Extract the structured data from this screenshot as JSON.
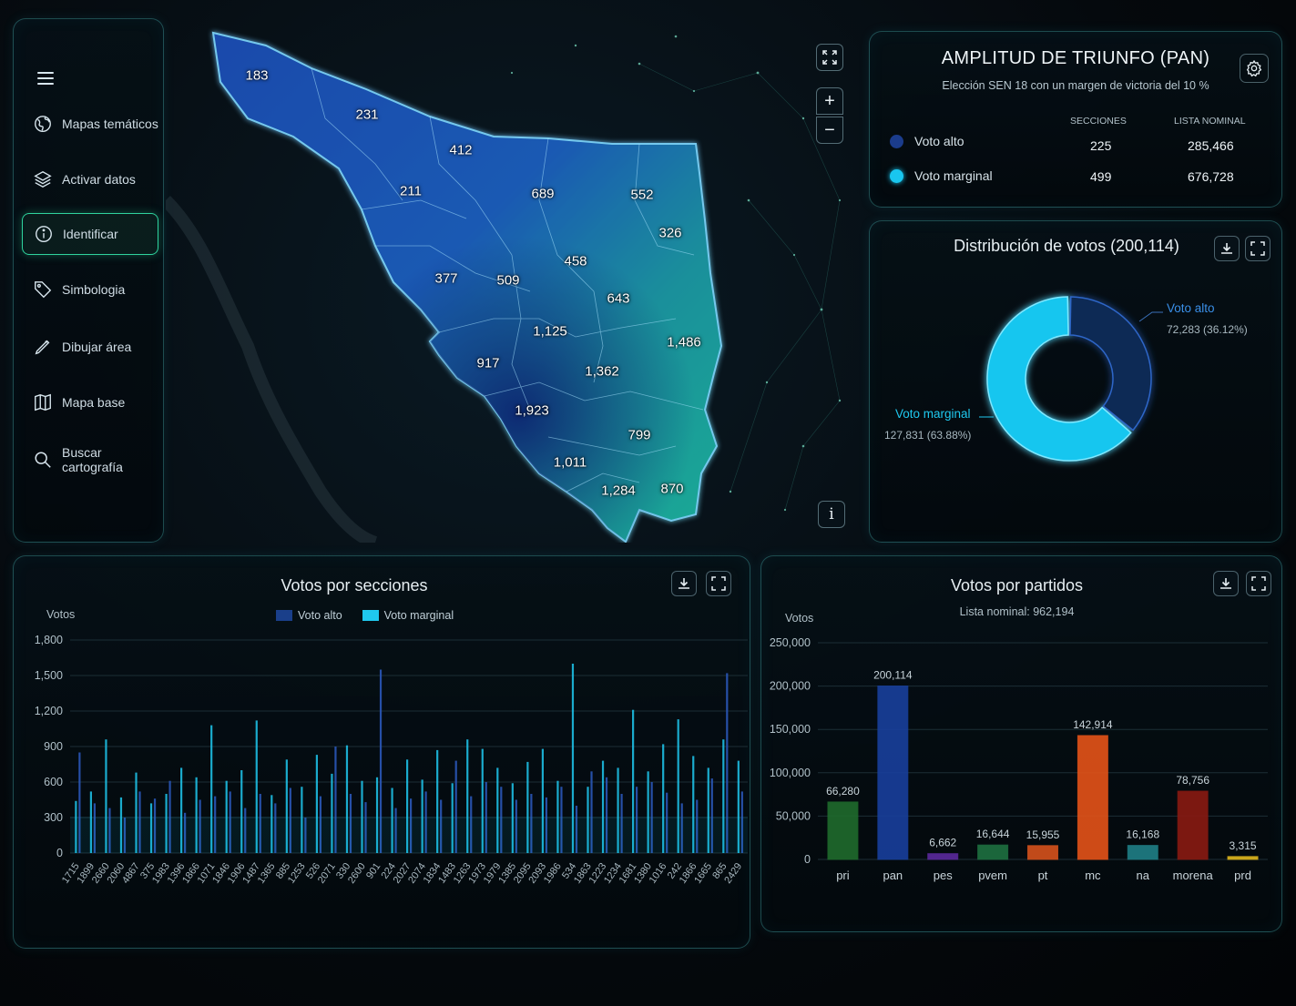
{
  "sidebar": {
    "items": [
      {
        "label": "Mapas temáticos",
        "icon": "globe-icon"
      },
      {
        "label": "Activar datos",
        "icon": "layers-icon"
      },
      {
        "label": "Identificar",
        "icon": "info-icon",
        "active": true
      },
      {
        "label": "Simbologia",
        "icon": "tag-icon"
      },
      {
        "label": "Dibujar área",
        "icon": "pen-icon"
      },
      {
        "label": "Mapa base",
        "icon": "map-icon"
      },
      {
        "label": "Buscar cartografía",
        "icon": "search-icon"
      }
    ]
  },
  "map": {
    "labels": [
      "183",
      "231",
      "412",
      "211",
      "689",
      "552",
      "326",
      "458",
      "377",
      "509",
      "643",
      "1,486",
      "1,125",
      "917",
      "1,362",
      "1,923",
      "799",
      "1,011",
      "1,284",
      "870"
    ],
    "zoom_in": "+",
    "zoom_out": "−",
    "info": "i"
  },
  "amplitud": {
    "title": "AMPLITUD DE TRIUNFO (PAN)",
    "subtitle": "Elección SEN 18 con un margen de victoria del 10 %",
    "col_secciones": "SECCIONES",
    "col_lista": "LISTA NOMINAL",
    "rows": [
      {
        "label": "Voto alto",
        "secciones": "225",
        "lista": "285,466",
        "color": "#1b3c8c"
      },
      {
        "label": "Voto marginal",
        "secciones": "499",
        "lista": "676,728",
        "color": "#19c6ef"
      }
    ]
  },
  "donut": {
    "title": "Distribución de votos (200,114)",
    "alto_label": "Voto alto",
    "alto_value": "72,283  (36.12%)",
    "marginal_label": "Voto marginal",
    "marginal_value": "127,831  (63.88%)",
    "chart_data": {
      "type": "pie",
      "slices": [
        {
          "name": "Voto alto",
          "value": 72283,
          "color": "#0f2a55"
        },
        {
          "name": "Voto marginal",
          "value": 127831,
          "color": "#19c6ef"
        }
      ]
    }
  },
  "secciones": {
    "title": "Votos por secciones",
    "ylabel": "Votos",
    "legend": [
      {
        "name": "Voto alto",
        "color": "#1a3f8a"
      },
      {
        "name": "Voto marginal",
        "color": "#1fc8ee"
      }
    ]
  },
  "partidos": {
    "title": "Votos por partidos",
    "subtitle": "Lista nominal: 962,194",
    "ylabel": "Votos"
  },
  "chart_data": [
    {
      "type": "bar",
      "title": "Votos por secciones",
      "ylabel": "Votos",
      "ylim": [
        0,
        1800
      ],
      "yticks": [
        "0",
        "300",
        "600",
        "900",
        "1,200",
        "1,500",
        "1,800"
      ],
      "categories": [
        "1715",
        "1899",
        "2660",
        "2060",
        "4867",
        "375",
        "1983",
        "1396",
        "1866",
        "1071",
        "1846",
        "1906",
        "1487",
        "1365",
        "885",
        "1253",
        "526",
        "2071",
        "330",
        "2600",
        "901",
        "224",
        "2027",
        "2074",
        "1834",
        "1483",
        "1263",
        "1973",
        "1979",
        "1385",
        "2095",
        "2093",
        "1986",
        "534",
        "1863",
        "1223",
        "1234",
        "1681",
        "1380",
        "1016",
        "242",
        "1866",
        "1665",
        "865",
        "2429"
      ],
      "series": [
        {
          "name": "Voto alto",
          "values": [
            850,
            420,
            380,
            300,
            520,
            460,
            610,
            340,
            450,
            480,
            520,
            380,
            500,
            420,
            550,
            300,
            480,
            900,
            500,
            430,
            1550,
            380,
            460,
            520,
            450,
            780,
            480,
            600,
            560,
            450,
            500,
            470,
            560,
            400,
            690,
            640,
            500,
            560,
            600,
            510,
            420,
            450,
            630,
            1520,
            520
          ]
        },
        {
          "name": "Voto marginal",
          "values": [
            440,
            520,
            960,
            470,
            680,
            420,
            500,
            720,
            640,
            1080,
            610,
            700,
            1120,
            490,
            790,
            560,
            830,
            670,
            910,
            610,
            640,
            550,
            790,
            620,
            870,
            590,
            960,
            880,
            720,
            590,
            770,
            880,
            610,
            1600,
            560,
            780,
            720,
            1210,
            690,
            920,
            1130,
            820,
            720,
            960,
            780
          ]
        }
      ]
    },
    {
      "type": "bar",
      "title": "Votos por partidos",
      "ylabel": "Votos",
      "ylim": [
        0,
        250000
      ],
      "yticks": [
        "0",
        "50,000",
        "100,000",
        "150,000",
        "200,000",
        "250,000"
      ],
      "categories": [
        "pri",
        "pan",
        "pes",
        "pvem",
        "pt",
        "mc",
        "na",
        "morena",
        "prd"
      ],
      "values": [
        66280,
        200114,
        6662,
        16644,
        15955,
        142914,
        16168,
        78756,
        3315
      ],
      "value_labels": [
        "66,280",
        "200,114",
        "6,662",
        "16,644",
        "15,955",
        "142,914",
        "16,168",
        "78,756",
        "3,315"
      ],
      "colors": [
        "#1f6b2c",
        "#183f9c",
        "#5b2a9c",
        "#1e7040",
        "#d6521c",
        "#e55318",
        "#1f7f86",
        "#8a1a12",
        "#e0b81e"
      ]
    }
  ]
}
